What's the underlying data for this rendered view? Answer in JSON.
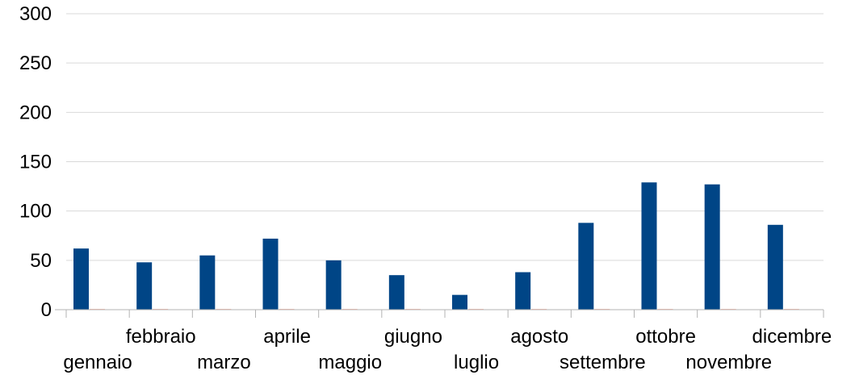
{
  "chart_data": {
    "type": "bar",
    "title": "",
    "xlabel": "",
    "ylabel": "",
    "ylim": [
      0,
      300
    ],
    "yticks": [
      0,
      50,
      100,
      150,
      200,
      250,
      300
    ],
    "grid": true,
    "legend": "none",
    "categories": [
      "gennaio",
      "febbraio",
      "marzo",
      "aprile",
      "maggio",
      "giugno",
      "luglio",
      "agosto",
      "settembre",
      "ottobre",
      "novembre",
      "dicembre"
    ],
    "series": [
      {
        "values": [
          62,
          48,
          55,
          72,
          50,
          35,
          15,
          38,
          88,
          129,
          127,
          86
        ],
        "color": "#004586"
      },
      {
        "values": [
          0,
          0,
          0,
          0,
          0,
          0,
          0,
          0,
          0,
          0,
          0,
          0
        ],
        "color": "#ff420e"
      }
    ],
    "colors": {
      "grid": "#d9d9d9",
      "axis": "#b3b3b3"
    }
  }
}
